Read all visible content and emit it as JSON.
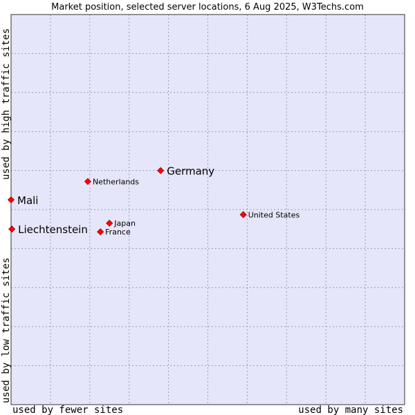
{
  "chart_data": {
    "type": "scatter",
    "title": "Market position, selected server locations, 6 Aug 2025, W3Techs.com",
    "xlabel_left": "used by fewer sites",
    "xlabel_right": "used by many sites",
    "ylabel_bottom": "used by low traffic sites",
    "ylabel_top": "used by high traffic sites",
    "xlim": [
      0,
      10
    ],
    "ylim": [
      0,
      10
    ],
    "grid": true,
    "colors": {
      "plot_bg": "#e6e6fa",
      "grid": "#9999bb",
      "border": "#333333",
      "marker": "#ff0000",
      "marker_edge": "#990000"
    },
    "points": [
      {
        "label": "Germany",
        "x": 3.8,
        "y": 6.0,
        "emphasis": true
      },
      {
        "label": "Netherlands",
        "x": 1.95,
        "y": 5.72,
        "emphasis": false
      },
      {
        "label": "Mali",
        "x": 0.0,
        "y": 5.25,
        "emphasis": true
      },
      {
        "label": "United States",
        "x": 5.9,
        "y": 4.87,
        "emphasis": false
      },
      {
        "label": "Japan",
        "x": 2.5,
        "y": 4.65,
        "emphasis": false
      },
      {
        "label": "Liechtenstein",
        "x": 0.02,
        "y": 4.5,
        "emphasis": true
      },
      {
        "label": "France",
        "x": 2.27,
        "y": 4.43,
        "emphasis": false
      }
    ]
  }
}
